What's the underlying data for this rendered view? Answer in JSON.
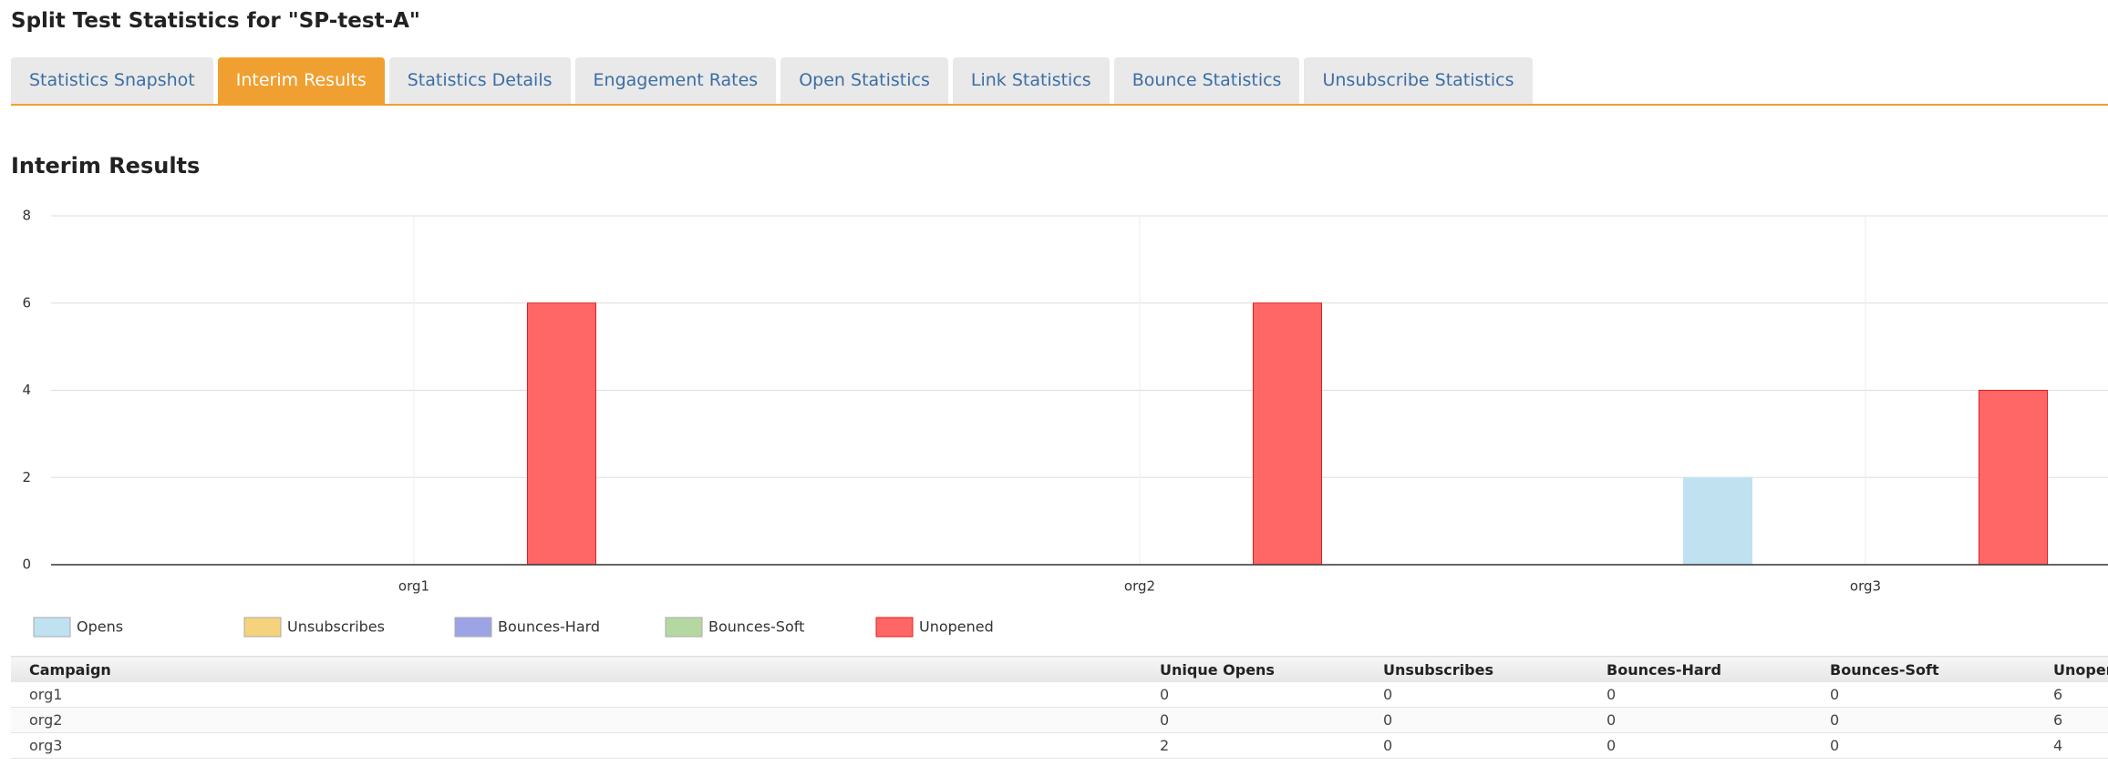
{
  "header": {
    "title": "Split Test Statistics for \"SP-test-A\""
  },
  "tabs": [
    "Statistics Snapshot",
    "Interim Results",
    "Statistics Details",
    "Engagement Rates",
    "Open Statistics",
    "Link Statistics",
    "Bounce Statistics",
    "Unsubscribe Statistics"
  ],
  "active_tab": 1,
  "section_title": "Interim Results",
  "chart_data": {
    "type": "bar",
    "categories": [
      "org1",
      "org2",
      "org3"
    ],
    "series": [
      {
        "name": "Opens",
        "color": "#c0e2f0",
        "values": [
          0,
          0,
          2
        ]
      },
      {
        "name": "Unsubscribes",
        "color": "#f5d27c",
        "values": [
          0,
          0,
          0
        ]
      },
      {
        "name": "Bounces-Hard",
        "color": "#9ca4e6",
        "values": [
          0,
          0,
          0
        ]
      },
      {
        "name": "Bounces-Soft",
        "color": "#b5d8a2",
        "values": [
          0,
          0,
          0
        ]
      },
      {
        "name": "Unopened",
        "color": "#ff6666",
        "values": [
          6,
          6,
          4
        ]
      }
    ],
    "ylim": [
      0,
      8
    ],
    "yticks": [
      0,
      2,
      4,
      6,
      8
    ],
    "grid": true
  },
  "table": {
    "columns": [
      "Campaign",
      "Unique Opens",
      "Unsubscribes",
      "Bounces-Hard",
      "Bounces-Soft",
      "Unopens"
    ],
    "rows": [
      [
        "org1",
        0,
        0,
        0,
        0,
        6
      ],
      [
        "org2",
        0,
        0,
        0,
        0,
        6
      ],
      [
        "org3",
        2,
        0,
        0,
        0,
        4
      ]
    ]
  }
}
